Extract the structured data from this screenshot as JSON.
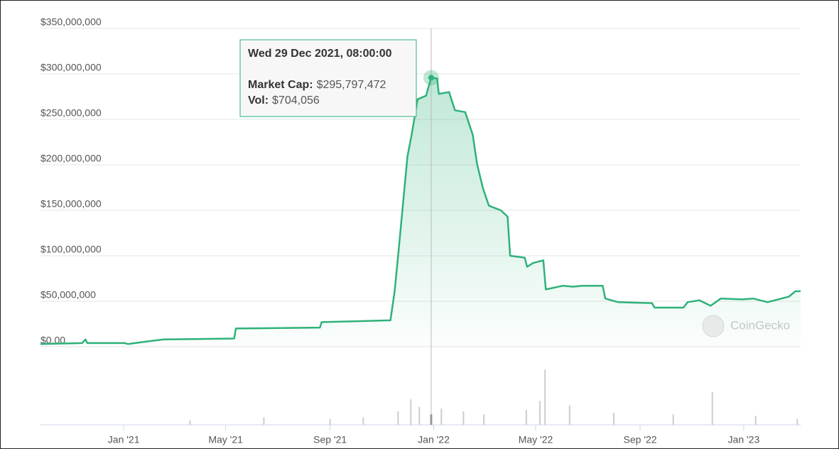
{
  "chart_data": {
    "type": "line",
    "x": [
      "2020-09-25",
      "2020-11-13",
      "2020-11-17",
      "2020-11-19",
      "2021-01-02",
      "2021-01-06",
      "2021-01-31",
      "2021-02-17",
      "2021-05-11",
      "2021-05-13",
      "2021-08-20",
      "2021-08-22",
      "2021-11-11",
      "2021-11-16",
      "2021-11-21",
      "2021-11-26",
      "2021-12-01",
      "2021-12-06",
      "2021-12-13",
      "2021-12-23",
      "2021-12-29",
      "2022-01-05",
      "2022-01-07",
      "2022-01-19",
      "2022-01-26",
      "2022-02-07",
      "2022-02-16",
      "2022-02-21",
      "2022-02-28",
      "2022-03-07",
      "2022-03-21",
      "2022-03-29",
      "2022-04-01",
      "2022-04-18",
      "2022-04-21",
      "2022-04-28",
      "2022-05-10",
      "2022-05-13",
      "2022-06-02",
      "2022-06-14",
      "2022-06-25",
      "2022-07-19",
      "2022-07-22",
      "2022-08-06",
      "2022-09-15",
      "2022-09-18",
      "2022-10-22",
      "2022-10-27",
      "2022-11-10",
      "2022-11-23",
      "2022-12-05",
      "2022-12-30",
      "2023-01-12",
      "2023-01-29",
      "2023-02-23",
      "2023-03-03",
      "2023-03-09"
    ],
    "series": [
      {
        "name": "Market Cap",
        "color": "#2fb27a",
        "values": [
          3000000,
          4000000,
          8000000,
          4000000,
          4000000,
          3000000,
          6000000,
          8000000,
          9000000,
          20000000,
          21000000,
          27000000,
          29000000,
          61000000,
          109000000,
          159000000,
          209000000,
          233000000,
          272000000,
          276000000,
          295797472,
          295000000,
          278000000,
          280000000,
          260000000,
          258000000,
          233000000,
          201000000,
          174000000,
          155000000,
          150000000,
          143000000,
          100000000,
          98000000,
          88000000,
          92000000,
          95000000,
          63000000,
          67000000,
          66000000,
          67000000,
          67000000,
          53000000,
          49000000,
          48000000,
          43000000,
          43000000,
          49000000,
          51000000,
          45000000,
          53000000,
          52000000,
          53000000,
          49000000,
          55000000,
          61000000,
          61000000
        ]
      }
    ],
    "volume": {
      "color": "#c8cdd6",
      "x": [
        "2021-03-20",
        "2021-06-15",
        "2021-09-01",
        "2021-10-10",
        "2021-11-20",
        "2021-12-05",
        "2021-12-15",
        "2021-12-29",
        "2022-01-10",
        "2022-02-05",
        "2022-03-01",
        "2022-04-20",
        "2022-05-06",
        "2022-05-12",
        "2022-06-10",
        "2022-08-01",
        "2022-10-10",
        "2022-11-25",
        "2023-01-15",
        "2023-03-05"
      ],
      "values": [
        300000,
        500000,
        400000,
        500000,
        900000,
        1700000,
        1200000,
        704056,
        1100000,
        900000,
        700000,
        1000000,
        1600000,
        3700000,
        1300000,
        800000,
        700000,
        2200000,
        600000,
        400000
      ],
      "ylim": [
        0,
        3800000
      ]
    },
    "xlim": [
      "2020-09-25",
      "2023-03-09"
    ],
    "xticks": [
      {
        "value": "2021-01-01",
        "label": "Jan '21"
      },
      {
        "value": "2021-05-01",
        "label": "May '21"
      },
      {
        "value": "2021-09-01",
        "label": "Sep '21"
      },
      {
        "value": "2022-01-01",
        "label": "Jan '22"
      },
      {
        "value": "2022-05-01",
        "label": "May '22"
      },
      {
        "value": "2022-09-01",
        "label": "Sep '22"
      },
      {
        "value": "2023-01-01",
        "label": "Jan '23"
      }
    ],
    "ylim": [
      0,
      350000000
    ],
    "yticks": [
      {
        "value": 0,
        "label": "$0.00"
      },
      {
        "value": 50000000,
        "label": "$50,000,000"
      },
      {
        "value": 100000000,
        "label": "$100,000,000"
      },
      {
        "value": 150000000,
        "label": "$150,000,000"
      },
      {
        "value": 200000000,
        "label": "$200,000,000"
      },
      {
        "value": 250000000,
        "label": "$250,000,000"
      },
      {
        "value": 300000000,
        "label": "$300,000,000"
      },
      {
        "value": 350000000,
        "label": "$350,000,000"
      }
    ],
    "grid": true,
    "watermark": "CoinGecko",
    "tooltip": {
      "x": "2021-12-29",
      "title": "Wed 29 Dec 2021, 08:00:00",
      "rows": [
        {
          "label": "Market Cap:",
          "value": 295797472,
          "value_label": "$295,797,472"
        },
        {
          "label": "Vol:",
          "value": 704056,
          "value_label": "$704,056"
        }
      ]
    }
  }
}
